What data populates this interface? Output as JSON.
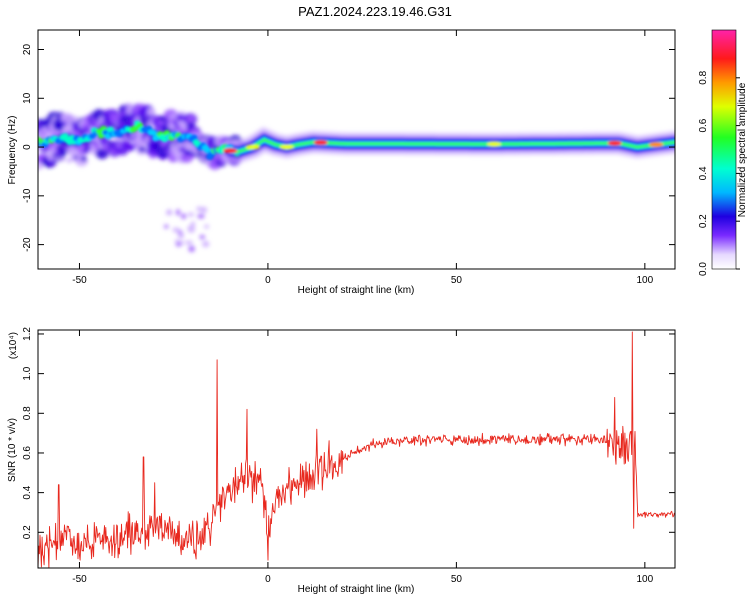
{
  "title": "PAZ1.2024.223.19.46.G31",
  "colors": {
    "snr_line": "#e8281e",
    "axis": "#000000"
  },
  "spectrogram": {
    "type": "heatmap",
    "xlabel": "Height of straight line (km)",
    "ylabel": "Frequency (Hz)",
    "xlim": [
      -61,
      108
    ],
    "ylim": [
      -25,
      24
    ],
    "xticks": [
      -50,
      0,
      50,
      100
    ],
    "yticks": [
      -20,
      -10,
      0,
      10,
      20
    ],
    "ridge": [
      {
        "x": -60,
        "y": 1.0
      },
      {
        "x": -55,
        "y": 2.0
      },
      {
        "x": -50,
        "y": 1.5
      },
      {
        "x": -45,
        "y": 3.0
      },
      {
        "x": -40,
        "y": 3.0
      },
      {
        "x": -35,
        "y": 4.5
      },
      {
        "x": -30,
        "y": 2.5
      },
      {
        "x": -25,
        "y": 2.0
      },
      {
        "x": -20,
        "y": 1.5
      },
      {
        "x": -15,
        "y": -1.5
      },
      {
        "x": -12,
        "y": -0.5
      },
      {
        "x": -8,
        "y": -1.0
      },
      {
        "x": -4,
        "y": 0.0
      },
      {
        "x": -1,
        "y": 1.5
      },
      {
        "x": 2,
        "y": 0.5
      },
      {
        "x": 5,
        "y": 0.0
      },
      {
        "x": 8,
        "y": 0.5
      },
      {
        "x": 12,
        "y": 1.0
      },
      {
        "x": 20,
        "y": 0.7
      },
      {
        "x": 60,
        "y": 0.6
      },
      {
        "x": 93,
        "y": 0.8
      },
      {
        "x": 98,
        "y": 0.0
      },
      {
        "x": 108,
        "y": 1.0
      }
    ],
    "colorbar": {
      "label": "Normalized spectral amplitude",
      "range": [
        0,
        1
      ],
      "ticks": [
        0.0,
        0.2,
        0.4,
        0.6,
        0.8
      ]
    }
  },
  "snr": {
    "type": "line",
    "xlabel": "Height of straight line (km)",
    "ylabel": "SNR (10 * v/v)",
    "scale_label": "(x10⁴)",
    "xlim": [
      -61,
      108
    ],
    "ylim": [
      0.02,
      1.22
    ],
    "xticks": [
      -50,
      0,
      50,
      100
    ],
    "yticks": [
      0.2,
      0.4,
      0.6,
      0.8,
      1.0,
      1.2
    ],
    "trend": [
      {
        "x": -61,
        "y": 0.1
      },
      {
        "x": -55,
        "y": 0.18
      },
      {
        "x": -50,
        "y": 0.14
      },
      {
        "x": -40,
        "y": 0.16
      },
      {
        "x": -33,
        "y": 0.22
      },
      {
        "x": -28,
        "y": 0.22
      },
      {
        "x": -22,
        "y": 0.14
      },
      {
        "x": -17,
        "y": 0.19
      },
      {
        "x": -14,
        "y": 0.3
      },
      {
        "x": -10,
        "y": 0.42
      },
      {
        "x": -6,
        "y": 0.47
      },
      {
        "x": -2,
        "y": 0.45
      },
      {
        "x": 0,
        "y": 0.2
      },
      {
        "x": 3,
        "y": 0.42
      },
      {
        "x": 6,
        "y": 0.45
      },
      {
        "x": 10,
        "y": 0.47
      },
      {
        "x": 15,
        "y": 0.53
      },
      {
        "x": 20,
        "y": 0.58
      },
      {
        "x": 25,
        "y": 0.62
      },
      {
        "x": 30,
        "y": 0.655
      },
      {
        "x": 40,
        "y": 0.665
      },
      {
        "x": 50,
        "y": 0.665
      },
      {
        "x": 60,
        "y": 0.665
      },
      {
        "x": 70,
        "y": 0.665
      },
      {
        "x": 80,
        "y": 0.67
      },
      {
        "x": 88,
        "y": 0.665
      },
      {
        "x": 92,
        "y": 0.65
      },
      {
        "x": 96,
        "y": 0.62
      },
      {
        "x": 97.5,
        "y": 0.6
      },
      {
        "x": 98,
        "y": 0.29
      },
      {
        "x": 108,
        "y": 0.29
      }
    ],
    "spikes": [
      {
        "x": -55.5,
        "y": 0.44
      },
      {
        "x": -33,
        "y": 0.58
      },
      {
        "x": -30,
        "y": 0.45
      },
      {
        "x": -13.5,
        "y": 1.07
      },
      {
        "x": -5.5,
        "y": 0.82
      },
      {
        "x": 0,
        "y": 0.06
      },
      {
        "x": 13,
        "y": 0.72
      },
      {
        "x": 92,
        "y": 0.88
      },
      {
        "x": 96.7,
        "y": 1.21
      },
      {
        "x": 97,
        "y": 0.22
      }
    ]
  }
}
